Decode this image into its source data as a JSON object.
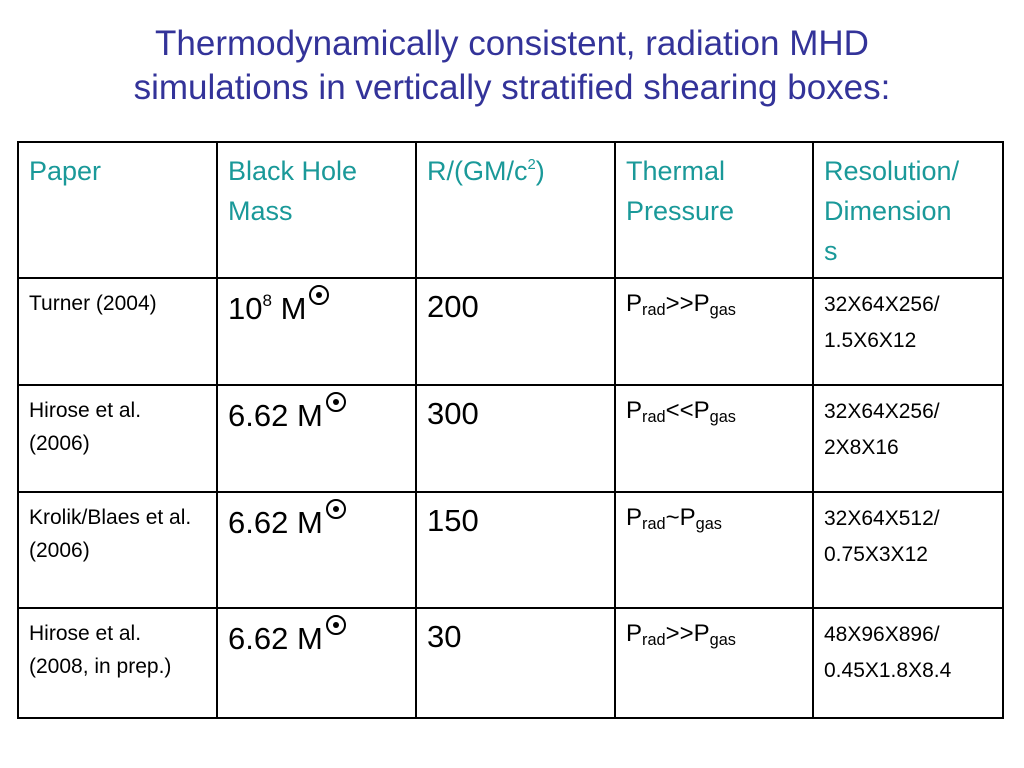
{
  "title": {
    "line1": "Thermodynamically consistent, radiation MHD",
    "line2": "simulations in vertically stratified shearing boxes:"
  },
  "table": {
    "headers": {
      "paper": "Paper",
      "mass": "Black Hole Mass",
      "radius_base": "R/(GM/c",
      "radius_sup": "2",
      "radius_close": ")",
      "thermal": "Thermal Pressure",
      "resolution_1": "Resolution/",
      "resolution_2": "Dimension",
      "resolution_3": "s"
    },
    "rows": [
      {
        "paper": "Turner (2004)",
        "mass_base": "10",
        "mass_exp": "8",
        "mass_unit": " M",
        "radius": "200",
        "p1": "P",
        "p1_sub": "rad",
        "relation": ">>",
        "p2": "P",
        "p2_sub": "gas",
        "res_line1": "32X64X256/",
        "res_line2": "1.5X6X12"
      },
      {
        "paper": "Hirose et al. (2006)",
        "mass_base": "6.62",
        "mass_exp": "",
        "mass_unit": " M",
        "radius": "300",
        "p1": "P",
        "p1_sub": "rad",
        "relation": "<<",
        "p2": "P",
        "p2_sub": "gas",
        "res_line1": "32X64X256/",
        "res_line2": "2X8X16"
      },
      {
        "paper": "Krolik/Blaes et al. (2006)",
        "mass_base": "6.62",
        "mass_exp": "",
        "mass_unit": " M",
        "radius": "150",
        "p1": "P",
        "p1_sub": "rad",
        "relation": "~",
        "p2": "P",
        "p2_sub": "gas",
        "res_line1": "32X64X512/",
        "res_line2": "0.75X3X12"
      },
      {
        "paper": "Hirose et al. (2008, in prep.)",
        "mass_base": "6.62",
        "mass_exp": "",
        "mass_unit": " M",
        "radius": "30",
        "p1": "P",
        "p1_sub": "rad",
        "relation": ">>",
        "p2": "P",
        "p2_sub": "gas",
        "res_line1": "48X96X896/",
        "res_line2": "0.45X1.8X8.4"
      }
    ]
  },
  "icons": {
    "solar_symbol": "sun-symbol-icon"
  }
}
